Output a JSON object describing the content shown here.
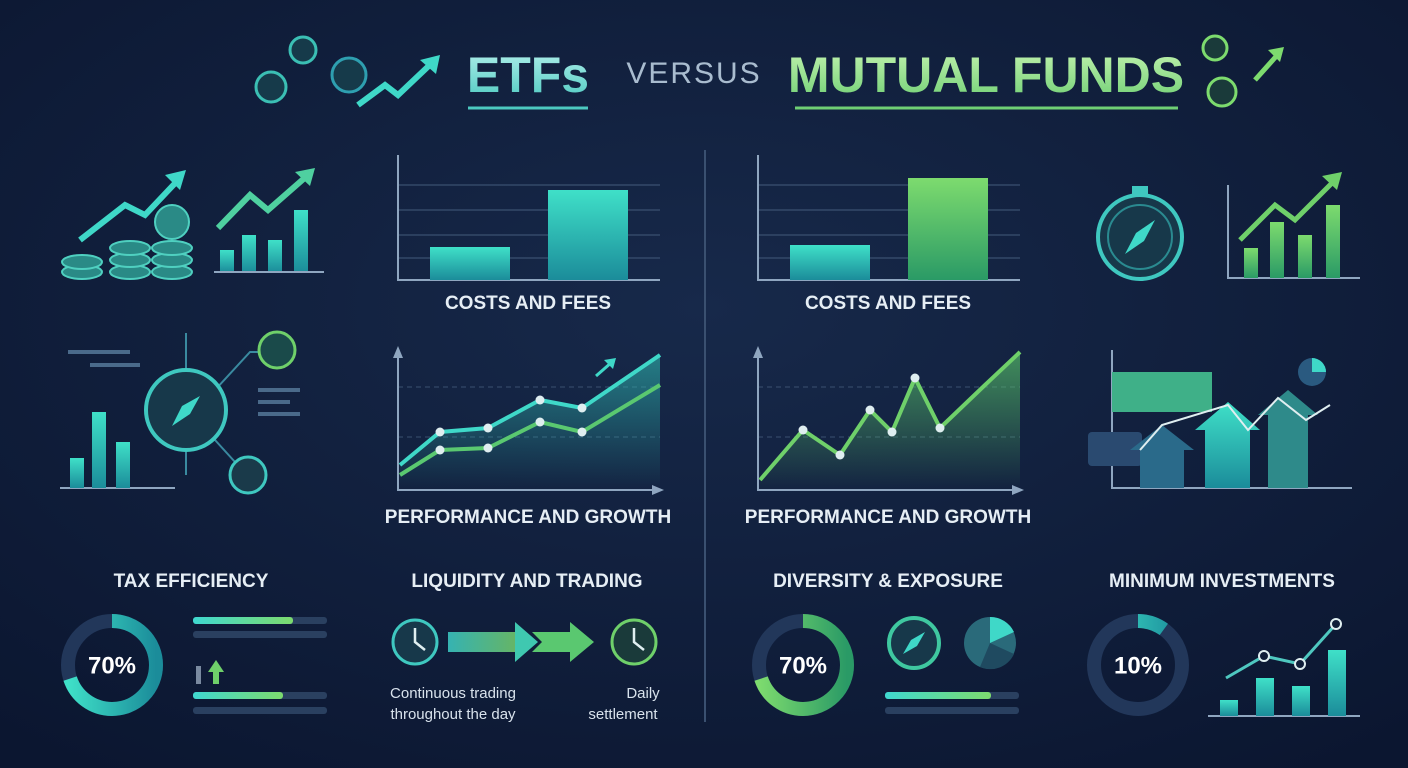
{
  "header": {
    "left_title": "ETFs",
    "versus": "VERSUS",
    "right_title": "MUTUAL FUNDS"
  },
  "panels": {
    "etf_costs": "COSTS AND FEES",
    "mf_costs": "COSTS AND FEES",
    "etf_performance": "PERFORMANCE AND GROWTH",
    "mf_performance": "PERFORMANCE AND GROWTH"
  },
  "metrics": [
    {
      "title": "TAX EFFICIENCY",
      "value": 70,
      "value_label": "70%"
    },
    {
      "title": "DIVERSITY & EXPOSURE",
      "value": 70,
      "value_label": "70%"
    },
    {
      "title": "MINIMUM INVESTMENTS",
      "value": 10,
      "value_label": "10%"
    }
  ],
  "liquidity": {
    "title": "LIQUIDITY AND TRADING",
    "left_text": [
      "Continuous trading",
      "throughout the day"
    ],
    "right_text": [
      "Daily",
      "settlement"
    ]
  }
}
